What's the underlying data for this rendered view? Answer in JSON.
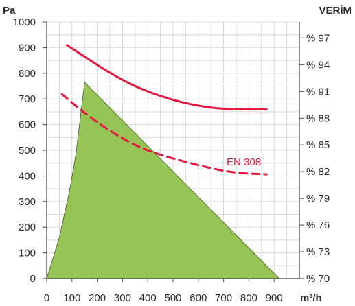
{
  "chart_data": {
    "type": "line",
    "left_axis": {
      "label": "Pa",
      "ticks": [
        0,
        100,
        200,
        300,
        400,
        500,
        600,
        700,
        800,
        900,
        1000
      ],
      "ylim": [
        0,
        1000
      ]
    },
    "right_axis": {
      "label": "VERİM",
      "ticks": [
        {
          "value": 70,
          "text": "% 70"
        },
        {
          "value": 73,
          "text": "% 73"
        },
        {
          "value": 76,
          "text": "% 76"
        },
        {
          "value": 79,
          "text": "% 79"
        },
        {
          "value": 82,
          "text": "% 82"
        },
        {
          "value": 85,
          "text": "% 85"
        },
        {
          "value": 88,
          "text": "% 88"
        },
        {
          "value": 91,
          "text": "% 91"
        },
        {
          "value": 94,
          "text": "% 94"
        },
        {
          "value": 97,
          "text": "% 97"
        }
      ],
      "ylim": [
        70,
        98.8
      ]
    },
    "x_axis": {
      "label": "m³/h",
      "ticks": [
        0,
        100,
        200,
        300,
        400,
        500,
        600,
        700,
        800,
        900
      ],
      "xlim": [
        0,
        1000
      ]
    },
    "grid": true,
    "operating_area": {
      "color": "#95c356",
      "points": [
        [
          0,
          0
        ],
        [
          50,
          160
        ],
        [
          90,
          340
        ],
        [
          115,
          480
        ],
        [
          130,
          600
        ],
        [
          150,
          765
        ],
        [
          920,
          0
        ]
      ]
    },
    "series": [
      {
        "color": "#e5173f",
        "style": "solid",
        "points": [
          [
            80,
            96.2
          ],
          [
            150,
            94.9
          ],
          [
            250,
            93.1
          ],
          [
            350,
            91.6
          ],
          [
            450,
            90.5
          ],
          [
            550,
            89.7
          ],
          [
            650,
            89.2
          ],
          [
            750,
            89.0
          ],
          [
            870,
            89.0
          ]
        ]
      },
      {
        "name": "EN 308",
        "color": "#e5173f",
        "style": "dashed",
        "points": [
          [
            60,
            90.7
          ],
          [
            150,
            88.6
          ],
          [
            250,
            86.6
          ],
          [
            350,
            85.0
          ],
          [
            450,
            83.9
          ],
          [
            550,
            83.1
          ],
          [
            650,
            82.4
          ],
          [
            750,
            81.9
          ],
          [
            870,
            81.7
          ]
        ]
      }
    ],
    "annotations": [
      {
        "text": "EN 308",
        "x": 780,
        "y": 82.7
      }
    ]
  }
}
